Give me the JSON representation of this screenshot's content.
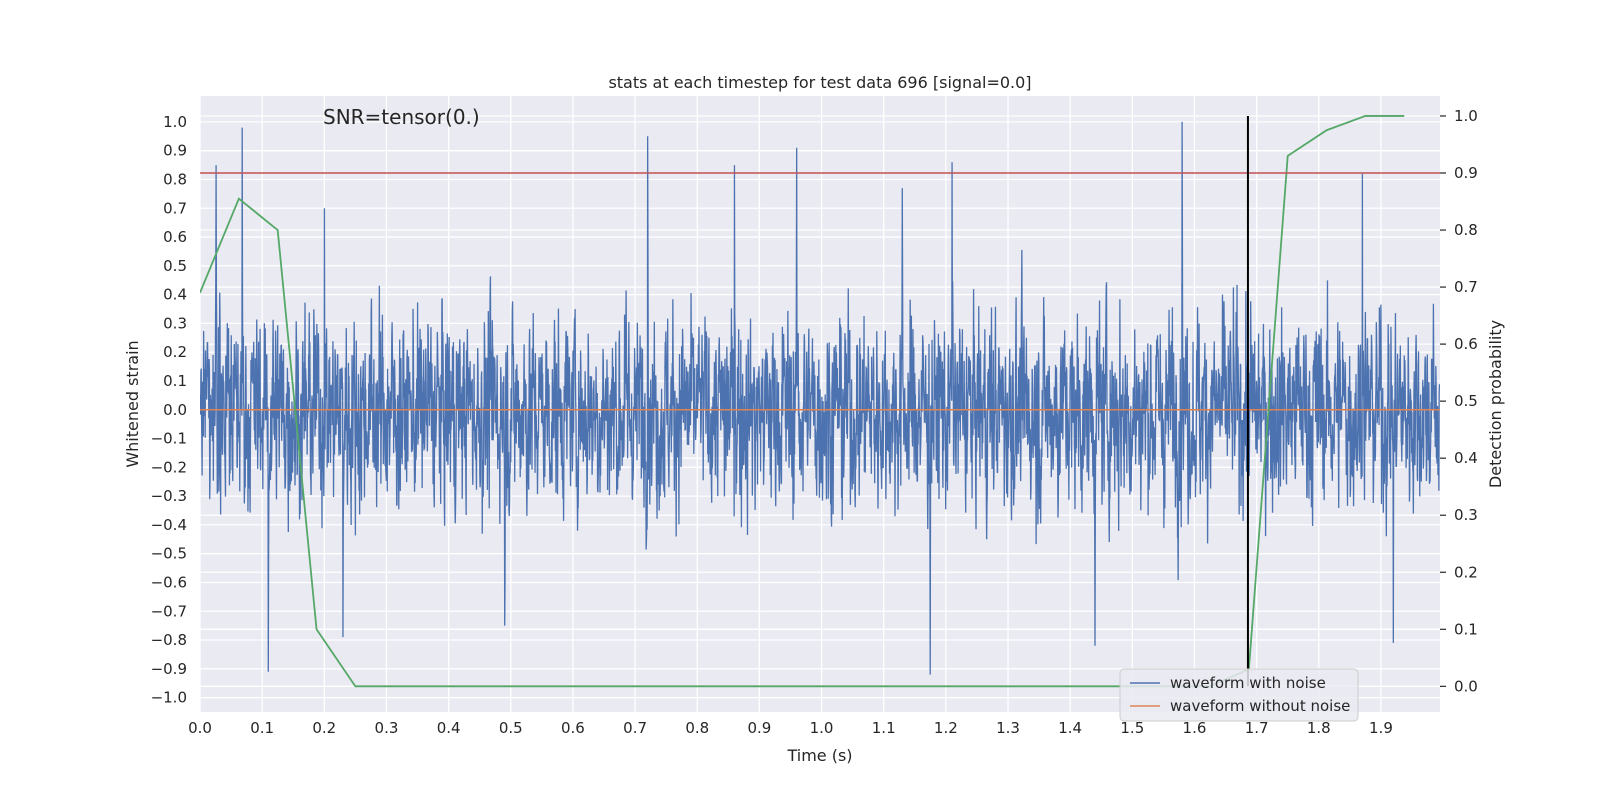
{
  "chart_data": {
    "type": "line",
    "title": "stats at each timestep for test data 696 [signal=0.0]",
    "annotation": "SNR=tensor(0.)",
    "xlabel": "Time (s)",
    "ylabel_left": "Whitened strain",
    "ylabel_right": "Detection probability",
    "xlim": [
      0.0,
      1.995
    ],
    "ylim_left": [
      -1.05,
      1.09
    ],
    "ylim_right": [
      -0.045,
      1.035
    ],
    "x_ticks": [
      "0.0",
      "0.1",
      "0.2",
      "0.3",
      "0.4",
      "0.5",
      "0.6",
      "0.7",
      "0.8",
      "0.9",
      "1.0",
      "1.1",
      "1.2",
      "1.3",
      "1.4",
      "1.5",
      "1.6",
      "1.7",
      "1.8",
      "1.9"
    ],
    "y_ticks_left": [
      "1.0",
      "0.9",
      "0.8",
      "0.7",
      "0.6",
      "0.5",
      "0.4",
      "0.3",
      "0.2",
      "0.1",
      "0.0",
      "−0.1",
      "−0.2",
      "−0.3",
      "−0.4",
      "−0.5",
      "−0.6",
      "−0.7",
      "−0.8",
      "−0.9",
      "−1.0"
    ],
    "y_ticks_right": [
      "1.0",
      "0.9",
      "0.8",
      "0.7",
      "0.6",
      "0.5",
      "0.4",
      "0.3",
      "0.2",
      "0.1",
      "0.0"
    ],
    "grid": true,
    "legend_position": "lower-right",
    "colors": {
      "background": "#eaeaf2",
      "noisy": "#4c72b0",
      "clean": "#dd8452",
      "probability": "#55a868",
      "threshold": "#c44e52",
      "marker": "#000000"
    },
    "series": [
      {
        "name": "waveform with noise",
        "axis": "left",
        "sample_rate": 2048,
        "duration": 1.995,
        "envelope": 0.5,
        "peaks": [
          {
            "x": 0.026,
            "y": 0.85
          },
          {
            "x": 0.068,
            "y": 0.98
          },
          {
            "x": 0.11,
            "y": -0.91
          },
          {
            "x": 0.2,
            "y": 0.7
          },
          {
            "x": 0.23,
            "y": -0.79
          },
          {
            "x": 0.49,
            "y": -0.75
          },
          {
            "x": 0.72,
            "y": 0.95
          },
          {
            "x": 0.86,
            "y": 0.85
          },
          {
            "x": 0.96,
            "y": 0.91
          },
          {
            "x": 1.13,
            "y": 0.77
          },
          {
            "x": 1.175,
            "y": -0.92
          },
          {
            "x": 1.21,
            "y": 0.86
          },
          {
            "x": 1.44,
            "y": -0.82
          },
          {
            "x": 1.58,
            "y": 1.0
          },
          {
            "x": 1.87,
            "y": 0.82
          },
          {
            "x": 1.92,
            "y": -0.81
          }
        ]
      },
      {
        "name": "waveform without noise",
        "axis": "left",
        "x": [
          0.0,
          1.995
        ],
        "y": [
          0.0,
          0.0
        ]
      },
      {
        "name": "",
        "axis": "right",
        "x": [
          0.0,
          0.0625,
          0.125,
          0.1875,
          0.25,
          0.3125,
          0.375,
          0.4375,
          0.5,
          0.5625,
          0.625,
          0.6875,
          0.75,
          0.8125,
          0.875,
          0.9375,
          1.0,
          1.0625,
          1.125,
          1.1875,
          1.25,
          1.3125,
          1.375,
          1.4375,
          1.5,
          1.5625,
          1.625,
          1.6875,
          1.75,
          1.8125,
          1.875,
          1.9375
        ],
        "y": [
          0.69,
          0.855,
          0.8,
          0.1,
          0.0,
          0.0,
          0.0,
          0.0,
          0.0,
          0.0,
          0.0,
          0.0,
          0.0,
          0.0,
          0.0,
          0.0,
          0.0,
          0.0,
          0.0,
          0.0,
          0.0,
          0.0,
          0.0,
          0.0,
          0.0,
          0.0,
          0.0,
          0.03,
          0.93,
          0.975,
          1.0,
          1.0
        ]
      }
    ],
    "threshold": {
      "axis": "right",
      "y": 0.9
    },
    "marker": {
      "x": 1.686,
      "y_range": [
        0.0,
        1.0
      ],
      "axis": "right"
    },
    "legend": [
      "waveform with noise",
      "waveform without noise"
    ]
  }
}
